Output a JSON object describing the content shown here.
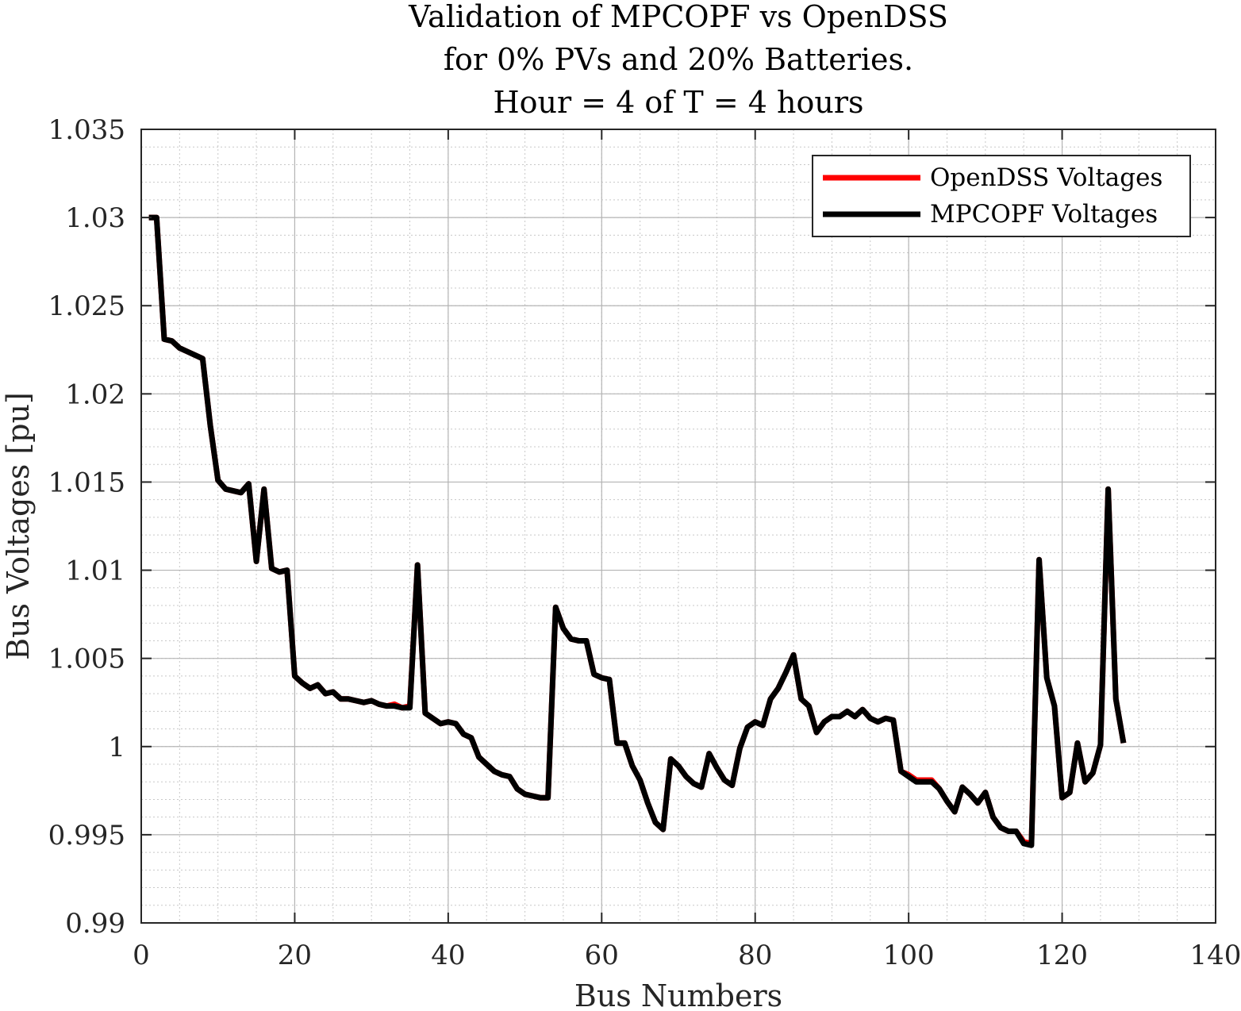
{
  "chart_data": {
    "type": "line",
    "title": [
      "Validation of MPCOPF vs OpenDSS",
      "for 0% PVs and 20% Batteries.",
      "Hour = 4 of T = 4 hours"
    ],
    "xlabel": "Bus Numbers",
    "ylabel": "Bus Voltages [pu]",
    "xlim": [
      0,
      140
    ],
    "ylim": [
      0.99,
      1.035
    ],
    "xticks": [
      0,
      20,
      40,
      60,
      80,
      100,
      120,
      140
    ],
    "xtick_labels": [
      "0",
      "20",
      "40",
      "60",
      "80",
      "100",
      "120",
      "140"
    ],
    "yticks": [
      0.99,
      0.995,
      1.0,
      1.005,
      1.01,
      1.015,
      1.02,
      1.025,
      1.03,
      1.035
    ],
    "ytick_labels": [
      "0.99",
      "0.995",
      "1",
      "1.005",
      "1.01",
      "1.015",
      "1.02",
      "1.025",
      "1.03",
      "1.035"
    ],
    "grid": true,
    "minor_grid": true,
    "legend_position": "top-right",
    "x": [
      1,
      2,
      3,
      4,
      5,
      6,
      7,
      8,
      9,
      10,
      11,
      12,
      13,
      14,
      15,
      16,
      17,
      18,
      19,
      20,
      21,
      22,
      23,
      24,
      25,
      26,
      27,
      28,
      29,
      30,
      31,
      32,
      33,
      34,
      35,
      36,
      37,
      38,
      39,
      40,
      41,
      42,
      43,
      44,
      45,
      46,
      47,
      48,
      49,
      50,
      51,
      52,
      53,
      54,
      55,
      56,
      57,
      58,
      59,
      60,
      61,
      62,
      63,
      64,
      65,
      66,
      67,
      68,
      69,
      70,
      71,
      72,
      73,
      74,
      75,
      76,
      77,
      78,
      79,
      80,
      81,
      82,
      83,
      84,
      85,
      86,
      87,
      88,
      89,
      90,
      91,
      92,
      93,
      94,
      95,
      96,
      97,
      98,
      99,
      100,
      101,
      102,
      103,
      104,
      105,
      106,
      107,
      108,
      109,
      110,
      111,
      112,
      113,
      114,
      115,
      116,
      117,
      118,
      119,
      120,
      121,
      122,
      123,
      124,
      125,
      126,
      127,
      128
    ],
    "series": [
      {
        "name": "OpenDSS Voltages",
        "color": "#ff0000",
        "values": [
          1.03,
          1.03,
          1.0231,
          1.023,
          1.0226,
          1.0224,
          1.0222,
          1.022,
          1.0182,
          1.0151,
          1.0146,
          1.0145,
          1.0144,
          1.0149,
          1.0105,
          1.0146,
          1.0101,
          1.0099,
          1.01,
          1.004,
          1.0036,
          1.0033,
          1.0035,
          1.003,
          1.0031,
          1.0027,
          1.0027,
          1.0026,
          1.0025,
          1.0026,
          1.0024,
          1.0023,
          1.0024,
          1.0022,
          1.0023,
          1.0103,
          1.0019,
          1.0016,
          1.0013,
          1.0014,
          1.0013,
          1.0007,
          1.0005,
          0.9994,
          0.999,
          0.9986,
          0.9984,
          0.9983,
          0.9976,
          0.9973,
          0.9972,
          0.9971,
          0.9971,
          1.0079,
          1.0067,
          1.0061,
          1.006,
          1.006,
          1.0041,
          1.0039,
          1.0038,
          1.0002,
          1.0002,
          0.9989,
          0.9981,
          0.9968,
          0.9957,
          0.9953,
          0.9993,
          0.9989,
          0.9983,
          0.9979,
          0.9977,
          0.9996,
          0.9988,
          0.9981,
          0.9978,
          0.9999,
          1.0011,
          1.0014,
          1.0012,
          1.0027,
          1.0033,
          1.0042,
          1.0052,
          1.0027,
          1.0023,
          1.0008,
          1.0014,
          1.0017,
          1.0017,
          1.002,
          1.0017,
          1.0021,
          1.0016,
          1.0014,
          1.0016,
          1.0015,
          0.9986,
          0.9984,
          0.9981,
          0.9981,
          0.9981,
          0.9976,
          0.9969,
          0.9963,
          0.9977,
          0.9973,
          0.9968,
          0.9974,
          0.996,
          0.9954,
          0.9952,
          0.9952,
          0.9946,
          0.9945,
          1.0106,
          1.0039,
          1.0023,
          0.9971,
          0.9974,
          1.0002,
          0.998,
          0.9985,
          1.0001,
          1.0146,
          1.0027,
          1.0002
        ]
      },
      {
        "name": "MPCOPF Voltages",
        "color": "#000000",
        "values": [
          1.03,
          1.03,
          1.0231,
          1.023,
          1.0226,
          1.0224,
          1.0222,
          1.022,
          1.0182,
          1.0151,
          1.0146,
          1.0145,
          1.0144,
          1.0149,
          1.0105,
          1.0146,
          1.0101,
          1.0099,
          1.01,
          1.004,
          1.0036,
          1.0033,
          1.0035,
          1.003,
          1.0031,
          1.0027,
          1.0027,
          1.0026,
          1.0025,
          1.0026,
          1.0024,
          1.0023,
          1.0023,
          1.0022,
          1.0022,
          1.0103,
          1.0019,
          1.0016,
          1.0013,
          1.0014,
          1.0013,
          1.0007,
          1.0005,
          0.9994,
          0.999,
          0.9986,
          0.9984,
          0.9983,
          0.9976,
          0.9973,
          0.9972,
          0.9971,
          0.9971,
          1.0079,
          1.0067,
          1.0061,
          1.006,
          1.006,
          1.0041,
          1.0039,
          1.0038,
          1.0002,
          1.0002,
          0.9989,
          0.9981,
          0.9968,
          0.9957,
          0.9953,
          0.9993,
          0.9989,
          0.9983,
          0.9979,
          0.9977,
          0.9996,
          0.9988,
          0.9981,
          0.9978,
          0.9999,
          1.0011,
          1.0014,
          1.0012,
          1.0027,
          1.0033,
          1.0042,
          1.0052,
          1.0027,
          1.0023,
          1.0008,
          1.0014,
          1.0017,
          1.0017,
          1.002,
          1.0017,
          1.0021,
          1.0016,
          1.0014,
          1.0016,
          1.0015,
          0.9986,
          0.9983,
          0.998,
          0.998,
          0.998,
          0.9976,
          0.9969,
          0.9963,
          0.9977,
          0.9973,
          0.9968,
          0.9974,
          0.996,
          0.9954,
          0.9952,
          0.9952,
          0.9945,
          0.9944,
          1.0106,
          1.0039,
          1.0023,
          0.9971,
          0.9974,
          1.0002,
          0.998,
          0.9985,
          1.0001,
          1.0146,
          1.0027,
          1.0002
        ]
      }
    ]
  }
}
